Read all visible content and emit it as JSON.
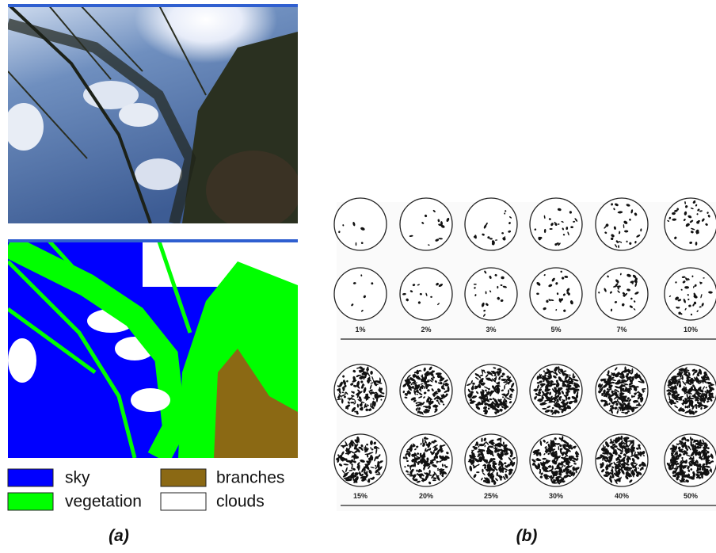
{
  "panel_a": {
    "legend": [
      {
        "label": "sky",
        "color": "#0000ff"
      },
      {
        "label": "branches",
        "color": "#8b6914"
      },
      {
        "label": "vegetation",
        "color": "#00ff00"
      },
      {
        "label": "clouds",
        "color": "#ffffff"
      }
    ],
    "caption": "(a)"
  },
  "panel_b": {
    "groups": [
      {
        "labels": [
          "1%",
          "2%",
          "3%",
          "5%",
          "7%",
          "10%"
        ]
      },
      {
        "labels": [
          "15%",
          "20%",
          "25%",
          "30%",
          "40%",
          "50%"
        ]
      }
    ],
    "caption": "(b)"
  }
}
